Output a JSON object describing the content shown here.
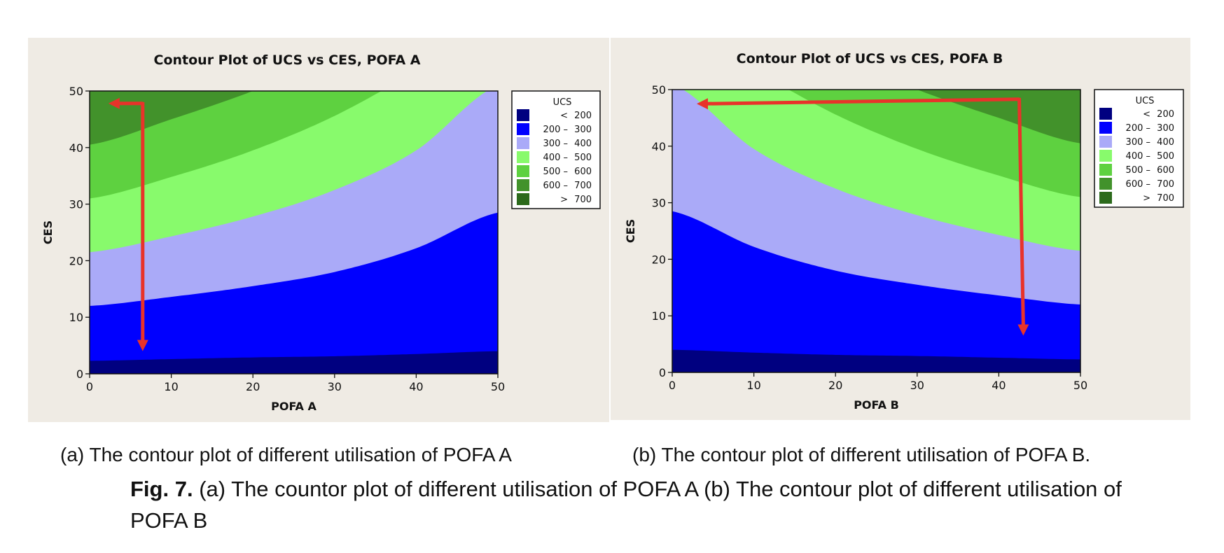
{
  "captions": {
    "sub_a": "(a) The contour plot of different utilisation of POFA A",
    "sub_b": "(b) The contour plot of different utilisation of POFA B.",
    "fig_label": "Fig. 7.",
    "fig_text": " (a) The countor plot of different utilisation of POFA A (b) The contour plot of different utilisation of POFA B"
  },
  "chart_data": [
    {
      "type": "contour",
      "title": "Contour Plot of UCS vs CES, POFA A",
      "xlabel": "POFA A",
      "ylabel": "CES",
      "xlim": [
        0,
        50
      ],
      "ylim": [
        0,
        50
      ],
      "xticks": [
        0,
        10,
        20,
        30,
        40,
        50
      ],
      "yticks": [
        0,
        10,
        20,
        30,
        40,
        50
      ],
      "legend_title": "UCS",
      "legend_position": "right",
      "levels": [
        {
          "label_left": "<",
          "label_right": "200",
          "color": "#000080"
        },
        {
          "label_left": "200 –",
          "label_right": "300",
          "color": "#0000ff"
        },
        {
          "label_left": "300 –",
          "label_right": "400",
          "color": "#aaaaf8"
        },
        {
          "label_left": "400 –",
          "label_right": "500",
          "color": "#88fa6c"
        },
        {
          "label_left": "500 –",
          "label_right": "600",
          "color": "#5ed140"
        },
        {
          "label_left": "600 –",
          "label_right": "700",
          "color": "#42922b"
        },
        {
          "label_left": ">",
          "label_right": "700",
          "color": "#2c6a1c"
        }
      ],
      "boundary_x": [
        0,
        10,
        20,
        30,
        40,
        50
      ],
      "boundaries": [
        {
          "level": 200,
          "ces": [
            2.3,
            2.6,
            2.9,
            3.1,
            3.5,
            4.0
          ]
        },
        {
          "level": 300,
          "ces": [
            12.0,
            13.6,
            15.5,
            18.0,
            22.2,
            28.5
          ]
        },
        {
          "level": 400,
          "ces": [
            21.5,
            24.3,
            27.8,
            32.5,
            39.5,
            51.0
          ]
        },
        {
          "level": 500,
          "ces": [
            31.0,
            34.8,
            39.5,
            45.6,
            53.5,
            62.0
          ]
        },
        {
          "level": 600,
          "ces": [
            40.5,
            45.0,
            50.0,
            56.0,
            63.0,
            72.0
          ]
        },
        {
          "level": 700,
          "ces": [
            52.0,
            57.0,
            62.0,
            68.0,
            75.0,
            84.0
          ]
        }
      ],
      "annotation_arrow": {
        "color": "#e8332a",
        "path": [
          [
            6.5,
            47.8
          ],
          [
            2.3,
            47.8
          ]
        ],
        "down": [
          [
            6.5,
            47.8
          ],
          [
            6.5,
            4.0
          ]
        ]
      }
    },
    {
      "type": "contour",
      "title": "Contour Plot of UCS vs CES, POFA B",
      "xlabel": "POFA B",
      "ylabel": "CES",
      "xlim": [
        0,
        50
      ],
      "ylim": [
        0,
        50
      ],
      "xticks": [
        0,
        10,
        20,
        30,
        40,
        50
      ],
      "yticks": [
        0,
        10,
        20,
        30,
        40,
        50
      ],
      "legend_title": "UCS",
      "legend_position": "right",
      "levels": [
        {
          "label_left": "<",
          "label_right": "200",
          "color": "#000080"
        },
        {
          "label_left": "200 –",
          "label_right": "300",
          "color": "#0000ff"
        },
        {
          "label_left": "300 –",
          "label_right": "400",
          "color": "#aaaaf8"
        },
        {
          "label_left": "400 –",
          "label_right": "500",
          "color": "#88fa6c"
        },
        {
          "label_left": "500 –",
          "label_right": "600",
          "color": "#5ed140"
        },
        {
          "label_left": "600 –",
          "label_right": "700",
          "color": "#42922b"
        },
        {
          "label_left": ">",
          "label_right": "700",
          "color": "#2c6a1c"
        }
      ],
      "boundary_x": [
        0,
        10,
        20,
        30,
        40,
        50
      ],
      "boundaries": [
        {
          "level": 200,
          "ces": [
            4.0,
            3.5,
            3.1,
            2.9,
            2.6,
            2.3
          ]
        },
        {
          "level": 300,
          "ces": [
            28.5,
            22.2,
            18.0,
            15.5,
            13.6,
            12.0
          ]
        },
        {
          "level": 400,
          "ces": [
            51.0,
            39.5,
            32.5,
            27.8,
            24.3,
            21.5
          ]
        },
        {
          "level": 500,
          "ces": [
            62.0,
            53.5,
            45.6,
            39.5,
            34.8,
            31.0
          ]
        },
        {
          "level": 600,
          "ces": [
            72.0,
            63.0,
            56.0,
            50.0,
            45.0,
            40.5
          ]
        },
        {
          "level": 700,
          "ces": [
            84.0,
            75.0,
            68.0,
            62.0,
            57.0,
            52.0
          ]
        }
      ],
      "annotation_arrow": {
        "color": "#e8332a",
        "path": [
          [
            42.5,
            48.3
          ],
          [
            3.0,
            47.5
          ]
        ],
        "down": [
          [
            42.5,
            48.3
          ],
          [
            43.0,
            6.5
          ]
        ]
      }
    }
  ]
}
